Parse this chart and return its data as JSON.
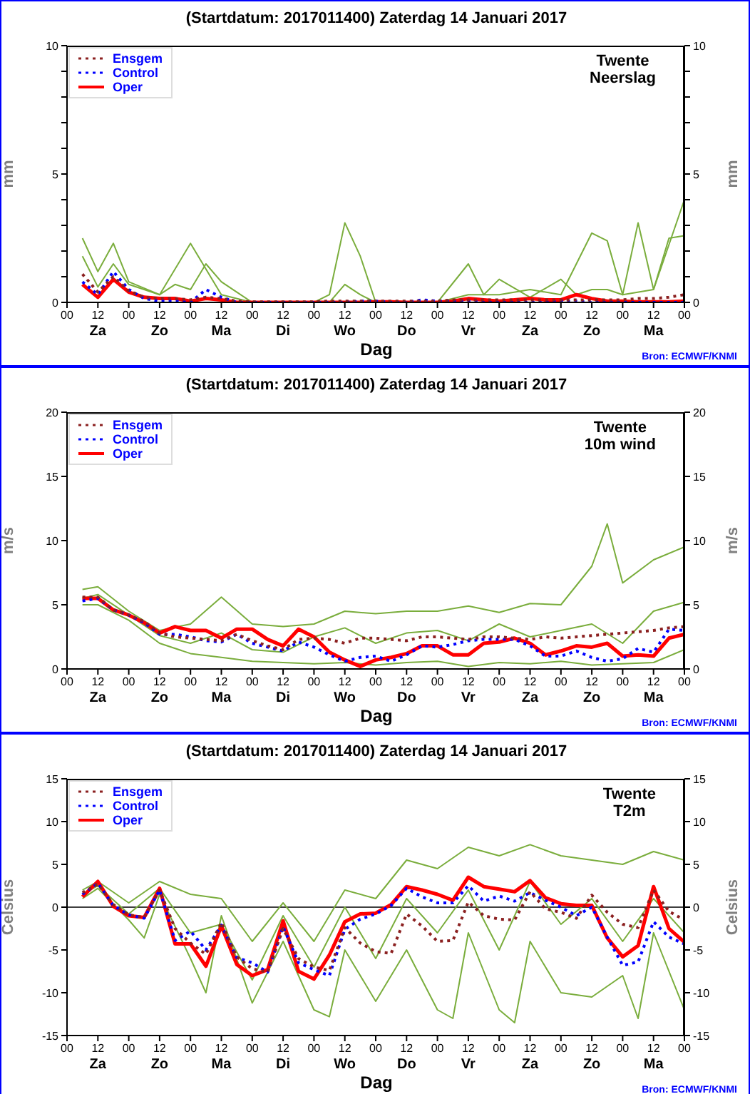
{
  "chart_data": [
    {
      "type": "line",
      "title": "(Startdatum: 2017011400) Zaterdag 14 Januari 2017",
      "subtitle": "Twente\nNeerslag",
      "xlabel": "Dag",
      "ylabel": "mm",
      "y2label": "mm",
      "legend": "top left",
      "marker": "none",
      "annotations": [
        "Za",
        "Zo",
        "Ma",
        "Di",
        "Wo",
        "Do",
        "Vr",
        "Za",
        "Zo",
        "Ma",
        "Bron: ECMWF/KNMI"
      ],
      "x": [
        6,
        12,
        18,
        24,
        30,
        36,
        42,
        48,
        54,
        60,
        66,
        72,
        78,
        84,
        90,
        96,
        102,
        108,
        114,
        120,
        126,
        132,
        138,
        144,
        150,
        156,
        162,
        168,
        174,
        180,
        186,
        192,
        198,
        204,
        210,
        216,
        222,
        228,
        234,
        240
      ],
      "xlim": [
        0,
        240
      ],
      "xticks": [
        {
          "value": 0,
          "label": "00"
        },
        {
          "value": 12,
          "label": "12"
        },
        {
          "value": 24,
          "label": "00"
        },
        {
          "value": 36,
          "label": "12"
        },
        {
          "value": 48,
          "label": "00"
        },
        {
          "value": 60,
          "label": "12"
        },
        {
          "value": 72,
          "label": "00"
        },
        {
          "value": 84,
          "label": "12"
        },
        {
          "value": 96,
          "label": "00"
        },
        {
          "value": 108,
          "label": "12"
        },
        {
          "value": 120,
          "label": "00"
        },
        {
          "value": 132,
          "label": "12"
        },
        {
          "value": 144,
          "label": "00"
        },
        {
          "value": 156,
          "label": "12"
        },
        {
          "value": 168,
          "label": "00"
        },
        {
          "value": 180,
          "label": "12"
        },
        {
          "value": 192,
          "label": "00"
        },
        {
          "value": 204,
          "label": "12"
        },
        {
          "value": 216,
          "label": "00"
        },
        {
          "value": 228,
          "label": "12"
        },
        {
          "value": 240,
          "label": "00"
        }
      ],
      "ylim": [
        0,
        10
      ],
      "yticks": [
        0,
        {
          "value": 1,
          "label": null
        },
        {
          "value": 2,
          "label": null
        },
        {
          "value": 3,
          "label": null
        },
        {
          "value": 4,
          "label": null
        },
        5,
        {
          "value": 6,
          "label": null
        },
        {
          "value": 7,
          "label": null
        },
        {
          "value": 8,
          "label": null
        },
        {
          "value": 9,
          "label": null
        },
        10
      ],
      "y2lim": [
        0,
        10
      ],
      "y2ticks": [
        0,
        {
          "value": 1,
          "label": null
        },
        {
          "value": 2,
          "label": null
        },
        {
          "value": 3,
          "label": null
        },
        {
          "value": 4,
          "label": null
        },
        5,
        {
          "value": 6,
          "label": null
        },
        {
          "value": 7,
          "label": null
        },
        {
          "value": 8,
          "label": null
        },
        {
          "value": 9,
          "label": null
        },
        10
      ],
      "series": [
        {
          "color": "#7aad3c",
          "line_style": "solid",
          "x": [
            6,
            12,
            18,
            24,
            36,
            48,
            54,
            60,
            72,
            84,
            96,
            102,
            108,
            114,
            120,
            144,
            156,
            162,
            168,
            180,
            192,
            198,
            204,
            210,
            216,
            222,
            228,
            234,
            240
          ],
          "values": [
            2.5,
            1.2,
            2.3,
            0.8,
            0.3,
            2.3,
            1.3,
            0.3,
            0,
            0,
            0,
            0,
            0.7,
            0.3,
            0,
            0,
            1.5,
            0.3,
            0.9,
            0.2,
            0.9,
            0.3,
            0.5,
            0.5,
            0.3,
            3.1,
            0.5,
            2.5,
            2.6
          ]
        },
        {
          "color": "#7aad3c",
          "line_style": "solid",
          "x": [
            6,
            12,
            18,
            24,
            36,
            42,
            48,
            54,
            60,
            66,
            72,
            96,
            102,
            108,
            114,
            120,
            144,
            156,
            168,
            180,
            192,
            204,
            210,
            216,
            228,
            240
          ],
          "values": [
            1.8,
            0.6,
            1.5,
            0.7,
            0.3,
            0.7,
            0.5,
            1.5,
            0.8,
            0.4,
            0,
            0,
            0.3,
            3.1,
            1.8,
            0,
            0,
            0.3,
            0.3,
            0.5,
            0.3,
            2.7,
            2.4,
            0.3,
            0.5,
            4.0
          ]
        },
        {
          "name": "Ensgem",
          "color": "#8b2020",
          "line_style": "dotted",
          "values": [
            1.1,
            0.4,
            1.0,
            0.45,
            0.2,
            0.15,
            0.15,
            0.1,
            0.2,
            0.15,
            0.05,
            0.02,
            0.02,
            0.02,
            0.02,
            0.02,
            0.05,
            0.05,
            0.05,
            0.05,
            0.05,
            0.05,
            0.05,
            0.05,
            0.1,
            0.1,
            0.1,
            0.1,
            0.1,
            0.1,
            0.1,
            0.1,
            0.1,
            0.1,
            0.1,
            0.1,
            0.15,
            0.15,
            0.2,
            0.3
          ]
        },
        {
          "name": "Control",
          "color": "#0000ff",
          "line_style": "dotted",
          "values": [
            0.8,
            0.3,
            1.2,
            0.5,
            0.15,
            0.05,
            0.05,
            0,
            0.5,
            0.2,
            0,
            0,
            0,
            0,
            0,
            0,
            0,
            0,
            0.05,
            0.05,
            0,
            0,
            0.1,
            0.05,
            0.05,
            0.05,
            0,
            0,
            0,
            0,
            0,
            0.05,
            0.05,
            0,
            0,
            0,
            0,
            0,
            0,
            0
          ]
        },
        {
          "name": "Oper",
          "color": "#ff0000",
          "line_style": "solid",
          "values": [
            0.7,
            0.2,
            0.9,
            0.4,
            0.2,
            0.15,
            0.15,
            0.05,
            0.15,
            0.1,
            0,
            0,
            0,
            0,
            0,
            0,
            0,
            0,
            0,
            0.02,
            0.02,
            0,
            0,
            0,
            0.05,
            0.15,
            0.1,
            0.05,
            0.1,
            0.15,
            0.1,
            0.1,
            0.3,
            0.15,
            0.05,
            0.05,
            0.02,
            0.02,
            0.02,
            0.05
          ]
        }
      ]
    },
    {
      "type": "line",
      "title": "(Startdatum: 2017011400) Zaterdag 14 Januari 2017",
      "subtitle": "Twente\n10m wind",
      "xlabel": "Dag",
      "ylabel": "m/s",
      "y2label": "m/s",
      "legend": "top left",
      "marker": "none",
      "annotations": [
        "Za",
        "Zo",
        "Ma",
        "Di",
        "Wo",
        "Do",
        "Vr",
        "Za",
        "Zo",
        "Ma",
        "Bron: ECMWF/KNMI"
      ],
      "x": [
        6,
        12,
        18,
        24,
        30,
        36,
        42,
        48,
        54,
        60,
        66,
        72,
        78,
        84,
        90,
        96,
        102,
        108,
        114,
        120,
        126,
        132,
        138,
        144,
        150,
        156,
        162,
        168,
        174,
        180,
        186,
        192,
        198,
        204,
        210,
        216,
        222,
        228,
        234,
        240
      ],
      "xlim": [
        0,
        240
      ],
      "xticks": [
        {
          "value": 0,
          "label": "00"
        },
        {
          "value": 12,
          "label": "12"
        },
        {
          "value": 24,
          "label": "00"
        },
        {
          "value": 36,
          "label": "12"
        },
        {
          "value": 48,
          "label": "00"
        },
        {
          "value": 60,
          "label": "12"
        },
        {
          "value": 72,
          "label": "00"
        },
        {
          "value": 84,
          "label": "12"
        },
        {
          "value": 96,
          "label": "00"
        },
        {
          "value": 108,
          "label": "12"
        },
        {
          "value": 120,
          "label": "00"
        },
        {
          "value": 132,
          "label": "12"
        },
        {
          "value": 144,
          "label": "00"
        },
        {
          "value": 156,
          "label": "12"
        },
        {
          "value": 168,
          "label": "00"
        },
        {
          "value": 180,
          "label": "12"
        },
        {
          "value": 192,
          "label": "00"
        },
        {
          "value": 204,
          "label": "12"
        },
        {
          "value": 216,
          "label": "00"
        },
        {
          "value": 228,
          "label": "12"
        },
        {
          "value": 240,
          "label": "00"
        }
      ],
      "ylim": [
        0,
        20
      ],
      "yticks": [
        0,
        5,
        10,
        15,
        20
      ],
      "y2lim": [
        0,
        20
      ],
      "y2ticks": [
        0,
        5,
        10,
        15,
        20
      ],
      "series": [
        {
          "color": "#7aad3c",
          "line_style": "solid",
          "x": [
            6,
            12,
            24,
            36,
            48,
            60,
            72,
            84,
            96,
            108,
            120,
            132,
            144,
            156,
            168,
            180,
            192,
            204,
            210,
            216,
            228,
            240
          ],
          "values": [
            6.2,
            6.4,
            4.5,
            3.0,
            3.5,
            5.6,
            3.5,
            3.3,
            3.5,
            4.5,
            4.3,
            4.5,
            4.5,
            4.9,
            4.4,
            5.1,
            5.0,
            8.0,
            11.3,
            6.7,
            8.5,
            9.5
          ]
        },
        {
          "color": "#7aad3c",
          "line_style": "solid",
          "x": [
            6,
            12,
            24,
            36,
            48,
            60,
            72,
            84,
            96,
            108,
            120,
            132,
            144,
            156,
            168,
            180,
            192,
            204,
            216,
            228,
            240
          ],
          "values": [
            5.0,
            5.0,
            3.8,
            2.0,
            1.2,
            0.9,
            0.6,
            0.5,
            0.4,
            0.5,
            0.3,
            0.5,
            0.6,
            0.2,
            0.5,
            0.4,
            0.6,
            0.3,
            0.4,
            0.5,
            1.5
          ]
        },
        {
          "color": "#7aad3c",
          "line_style": "solid",
          "x": [
            6,
            12,
            24,
            36,
            48,
            60,
            72,
            84,
            96,
            108,
            120,
            132,
            144,
            156,
            168,
            180,
            192,
            204,
            216,
            228,
            240
          ],
          "values": [
            5.5,
            5.8,
            4.2,
            2.6,
            2.0,
            2.8,
            1.5,
            1.3,
            2.5,
            3.2,
            2.0,
            2.8,
            3.0,
            2.2,
            3.5,
            2.5,
            3.0,
            3.5,
            2.0,
            4.5,
            5.2
          ]
        },
        {
          "name": "Ensgem",
          "color": "#8b2020",
          "line_style": "dotted",
          "values": [
            5.6,
            5.6,
            4.6,
            4.2,
            3.7,
            2.8,
            2.5,
            2.4,
            2.3,
            2.2,
            2.7,
            2.2,
            1.8,
            1.5,
            2.3,
            2.4,
            2.3,
            2.0,
            2.4,
            2.4,
            2.3,
            2.2,
            2.5,
            2.5,
            2.4,
            2.3,
            2.5,
            2.5,
            2.4,
            2.3,
            2.5,
            2.4,
            2.5,
            2.6,
            2.7,
            2.8,
            2.9,
            3.0,
            3.2,
            3.3
          ]
        },
        {
          "name": "Control",
          "color": "#0000ff",
          "line_style": "dotted",
          "values": [
            5.3,
            5.5,
            4.6,
            4.2,
            3.6,
            2.7,
            2.7,
            2.5,
            2.2,
            2.1,
            2.7,
            2.0,
            1.7,
            1.4,
            2.1,
            1.7,
            1.1,
            0.6,
            0.9,
            1.0,
            0.6,
            1.1,
            1.8,
            1.7,
            1.9,
            2.2,
            2.3,
            2.3,
            2.3,
            1.8,
            1.0,
            1.0,
            1.4,
            0.9,
            0.6,
            0.8,
            1.6,
            1.3,
            3.1,
            3.0
          ]
        },
        {
          "name": "Oper",
          "color": "#ff0000",
          "line_style": "solid",
          "values": [
            5.5,
            5.5,
            4.6,
            4.2,
            3.6,
            2.8,
            3.3,
            3.0,
            3.0,
            2.4,
            3.1,
            3.1,
            2.3,
            1.8,
            3.1,
            2.5,
            1.3,
            0.7,
            0.2,
            0.7,
            0.9,
            1.2,
            1.8,
            1.8,
            1.1,
            1.1,
            2.0,
            2.1,
            2.4,
            2.0,
            1.1,
            1.4,
            1.8,
            1.7,
            2.0,
            1.0,
            1.1,
            1.0,
            2.4,
            2.7
          ]
        }
      ]
    },
    {
      "type": "line",
      "title": "(Startdatum: 2017011400) Zaterdag 14 Januari 2017",
      "subtitle": "Twente\nT2m",
      "xlabel": "Dag",
      "ylabel": "Celsius",
      "y2label": "Celsius",
      "legend": "top left",
      "marker": "none",
      "annotations": [
        "Za",
        "Zo",
        "Ma",
        "Di",
        "Wo",
        "Do",
        "Vr",
        "Za",
        "Zo",
        "Ma",
        "Bron: ECMWF/KNMI"
      ],
      "x": [
        6,
        12,
        18,
        24,
        30,
        36,
        42,
        48,
        54,
        60,
        66,
        72,
        78,
        84,
        90,
        96,
        102,
        108,
        114,
        120,
        126,
        132,
        138,
        144,
        150,
        156,
        162,
        168,
        174,
        180,
        186,
        192,
        198,
        204,
        210,
        216,
        222,
        228,
        234,
        240
      ],
      "xlim": [
        0,
        240
      ],
      "xticks": [
        {
          "value": 0,
          "label": "00"
        },
        {
          "value": 12,
          "label": "12"
        },
        {
          "value": 24,
          "label": "00"
        },
        {
          "value": 36,
          "label": "12"
        },
        {
          "value": 48,
          "label": "00"
        },
        {
          "value": 60,
          "label": "12"
        },
        {
          "value": 72,
          "label": "00"
        },
        {
          "value": 84,
          "label": "12"
        },
        {
          "value": 96,
          "label": "00"
        },
        {
          "value": 108,
          "label": "12"
        },
        {
          "value": 120,
          "label": "00"
        },
        {
          "value": 132,
          "label": "12"
        },
        {
          "value": 144,
          "label": "00"
        },
        {
          "value": 156,
          "label": "12"
        },
        {
          "value": 168,
          "label": "00"
        },
        {
          "value": 180,
          "label": "12"
        },
        {
          "value": 192,
          "label": "00"
        },
        {
          "value": 204,
          "label": "12"
        },
        {
          "value": 216,
          "label": "00"
        },
        {
          "value": 228,
          "label": "12"
        },
        {
          "value": 240,
          "label": "00"
        }
      ],
      "ylim": [
        -15,
        15
      ],
      "yticks": [
        -15,
        -10,
        -5,
        0,
        5,
        10,
        15
      ],
      "y2lim": [
        -15,
        15
      ],
      "y2ticks": [
        -15,
        -10,
        -5,
        0,
        5,
        10,
        15
      ],
      "ref_lines": [
        {
          "axis": "y",
          "value": 0,
          "color": "#000000"
        }
      ],
      "series": [
        {
          "color": "#7aad3c",
          "line_style": "solid",
          "x": [
            6,
            12,
            24,
            36,
            48,
            60,
            72,
            84,
            96,
            108,
            120,
            132,
            144,
            156,
            168,
            180,
            192,
            204,
            216,
            228,
            240
          ],
          "values": [
            2.0,
            3.0,
            0.5,
            3.0,
            1.5,
            1.0,
            -4.0,
            0.5,
            -4.0,
            2.0,
            1.0,
            5.5,
            4.5,
            7.0,
            6.0,
            7.3,
            6.0,
            5.5,
            5.0,
            6.5,
            5.5
          ]
        },
        {
          "color": "#7aad3c",
          "line_style": "solid",
          "x": [
            6,
            12,
            24,
            30,
            36,
            48,
            54,
            60,
            72,
            84,
            96,
            102,
            108,
            120,
            132,
            144,
            150,
            156,
            168,
            174,
            180,
            192,
            204,
            216,
            222,
            228,
            240
          ],
          "values": [
            1.0,
            2.2,
            -1.5,
            -3.6,
            1.5,
            -6.0,
            -10.0,
            -1.0,
            -11.2,
            -4.0,
            -12.0,
            -12.8,
            -5.0,
            -11.0,
            -5.0,
            -12.0,
            -13.0,
            -3.0,
            -12.0,
            -13.5,
            -4.0,
            -10.0,
            -10.5,
            -8.0,
            -13.0,
            -3.0,
            -12.0
          ]
        },
        {
          "color": "#7aad3c",
          "line_style": "solid",
          "x": [
            6,
            12,
            24,
            36,
            48,
            60,
            72,
            84,
            96,
            108,
            120,
            132,
            144,
            156,
            168,
            180,
            192,
            204,
            216,
            228,
            240
          ],
          "values": [
            1.5,
            2.5,
            -0.8,
            2.2,
            -3.0,
            -2.0,
            -8.5,
            -1.0,
            -7.0,
            0,
            -6.0,
            1.0,
            -3.0,
            2.0,
            -5.0,
            3.0,
            -2.0,
            1.0,
            -4.0,
            1.0,
            -3.0
          ]
        },
        {
          "name": "Ensgem",
          "color": "#8b2020",
          "line_style": "dotted",
          "values": [
            1.7,
            2.7,
            0.3,
            -0.9,
            -1.2,
            2.0,
            -2.5,
            -4.2,
            -5.5,
            -1.8,
            -5.8,
            -7.2,
            -7.6,
            -2.5,
            -6.0,
            -7.0,
            -7.4,
            -2.4,
            -4.2,
            -5.2,
            -5.4,
            -0.8,
            -2.2,
            -4.0,
            -3.9,
            0.6,
            -1.0,
            -1.4,
            -1.5,
            1.8,
            -0.2,
            -0.6,
            -1.3,
            1.4,
            -0.6,
            -2.0,
            -2.4,
            2.0,
            -0.5,
            -1.5
          ]
        },
        {
          "name": "Control",
          "color": "#0000ff",
          "line_style": "dotted",
          "values": [
            1.5,
            2.8,
            0.2,
            -0.9,
            -1.3,
            2.0,
            -3.9,
            -2.8,
            -5.0,
            -2.1,
            -5.9,
            -6.5,
            -7.6,
            -2.3,
            -6.5,
            -7.3,
            -8.0,
            -2.6,
            -1.4,
            -0.8,
            0.2,
            2.2,
            1.2,
            0.5,
            0.5,
            2.5,
            0.7,
            1.3,
            0.7,
            1.7,
            0.8,
            0,
            -1.0,
            0,
            -3.5,
            -6.8,
            -6.4,
            -1.7,
            -3.5,
            -4.3
          ]
        },
        {
          "name": "Oper",
          "color": "#ff0000",
          "line_style": "solid",
          "values": [
            1.2,
            3.0,
            0.1,
            -1.0,
            -1.2,
            2.2,
            -4.3,
            -4.3,
            -6.9,
            -2.2,
            -6.7,
            -8.0,
            -7.3,
            -1.6,
            -7.5,
            -8.4,
            -5.6,
            -1.7,
            -0.8,
            -0.7,
            0.3,
            2.4,
            2.0,
            1.5,
            0.8,
            3.5,
            2.4,
            2.1,
            1.8,
            3.1,
            1.1,
            0.4,
            0.2,
            0.2,
            -3.6,
            -5.8,
            -4.5,
            2.4,
            -2.5,
            -4.1
          ]
        }
      ]
    }
  ]
}
